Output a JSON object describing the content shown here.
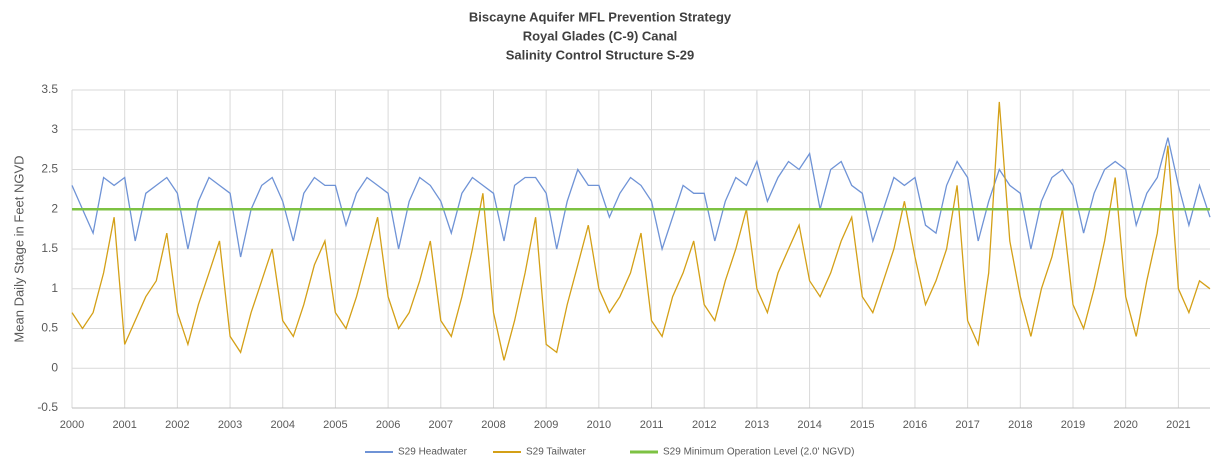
{
  "chart_data": {
    "type": "line",
    "title": "Biscayne Aquifer MFL Prevention Strategy",
    "subtitle": [
      "Royal Glades (C-9) Canal",
      "Salinity Control Structure S-29"
    ],
    "y_label": "Mean Daily Stage in Feet NGVD",
    "x": [
      2000.0,
      2000.2,
      2000.4,
      2000.6,
      2000.8,
      2001.0,
      2001.2,
      2001.4,
      2001.6,
      2001.8,
      2002.0,
      2002.2,
      2002.4,
      2002.6,
      2002.8,
      2003.0,
      2003.2,
      2003.4,
      2003.6,
      2003.8,
      2004.0,
      2004.2,
      2004.4,
      2004.6,
      2004.8,
      2005.0,
      2005.2,
      2005.4,
      2005.6,
      2005.8,
      2006.0,
      2006.2,
      2006.4,
      2006.6,
      2006.8,
      2007.0,
      2007.2,
      2007.4,
      2007.6,
      2007.8,
      2008.0,
      2008.2,
      2008.4,
      2008.6,
      2008.8,
      2009.0,
      2009.2,
      2009.4,
      2009.6,
      2009.8,
      2010.0,
      2010.2,
      2010.4,
      2010.6,
      2010.8,
      2011.0,
      2011.2,
      2011.4,
      2011.6,
      2011.8,
      2012.0,
      2012.2,
      2012.4,
      2012.6,
      2012.8,
      2013.0,
      2013.2,
      2013.4,
      2013.6,
      2013.8,
      2014.0,
      2014.2,
      2014.4,
      2014.6,
      2014.8,
      2015.0,
      2015.2,
      2015.4,
      2015.6,
      2015.8,
      2016.0,
      2016.2,
      2016.4,
      2016.6,
      2016.8,
      2017.0,
      2017.2,
      2017.4,
      2017.6,
      2017.8,
      2018.0,
      2018.2,
      2018.4,
      2018.6,
      2018.8,
      2019.0,
      2019.2,
      2019.4,
      2019.6,
      2019.8,
      2020.0,
      2020.2,
      2020.4,
      2020.6,
      2020.8,
      2021.0,
      2021.2,
      2021.4,
      2021.6
    ],
    "series": [
      {
        "name": "S29 Headwater",
        "color": "#6f93d6",
        "values": [
          2.3,
          2.0,
          1.7,
          2.4,
          2.3,
          2.4,
          1.6,
          2.2,
          2.3,
          2.4,
          2.2,
          1.5,
          2.1,
          2.4,
          2.3,
          2.2,
          1.4,
          2.0,
          2.3,
          2.4,
          2.1,
          1.6,
          2.2,
          2.4,
          2.3,
          2.3,
          1.8,
          2.2,
          2.4,
          2.3,
          2.2,
          1.5,
          2.1,
          2.4,
          2.3,
          2.1,
          1.7,
          2.2,
          2.4,
          2.3,
          2.2,
          1.6,
          2.3,
          2.4,
          2.4,
          2.2,
          1.5,
          2.1,
          2.5,
          2.3,
          2.3,
          1.9,
          2.2,
          2.4,
          2.3,
          2.1,
          1.5,
          1.9,
          2.3,
          2.2,
          2.2,
          1.6,
          2.1,
          2.4,
          2.3,
          2.6,
          2.1,
          2.4,
          2.6,
          2.5,
          2.7,
          2.0,
          2.5,
          2.6,
          2.3,
          2.2,
          1.6,
          2.0,
          2.4,
          2.3,
          2.4,
          1.8,
          1.7,
          2.3,
          2.6,
          2.4,
          1.6,
          2.1,
          2.5,
          2.3,
          2.2,
          1.5,
          2.1,
          2.4,
          2.5,
          2.3,
          1.7,
          2.2,
          2.5,
          2.6,
          2.5,
          1.8,
          2.2,
          2.4,
          2.9,
          2.3,
          1.8,
          2.3,
          1.9
        ]
      },
      {
        "name": "S29 Tailwater",
        "color": "#d4a017",
        "values": [
          0.7,
          0.5,
          0.7,
          1.2,
          1.9,
          0.3,
          0.6,
          0.9,
          1.1,
          1.7,
          0.7,
          0.3,
          0.8,
          1.2,
          1.6,
          0.4,
          0.2,
          0.7,
          1.1,
          1.5,
          0.6,
          0.4,
          0.8,
          1.3,
          1.6,
          0.7,
          0.5,
          0.9,
          1.4,
          1.9,
          0.9,
          0.5,
          0.7,
          1.1,
          1.6,
          0.6,
          0.4,
          0.9,
          1.5,
          2.2,
          0.7,
          0.1,
          0.6,
          1.2,
          1.9,
          0.3,
          0.2,
          0.8,
          1.3,
          1.8,
          1.0,
          0.7,
          0.9,
          1.2,
          1.7,
          0.6,
          0.4,
          0.9,
          1.2,
          1.6,
          0.8,
          0.6,
          1.1,
          1.5,
          2.0,
          1.0,
          0.7,
          1.2,
          1.5,
          1.8,
          1.1,
          0.9,
          1.2,
          1.6,
          1.9,
          0.9,
          0.7,
          1.1,
          1.5,
          2.1,
          1.4,
          0.8,
          1.1,
          1.5,
          2.3,
          0.6,
          0.3,
          1.2,
          3.35,
          1.6,
          0.9,
          0.4,
          1.0,
          1.4,
          2.0,
          0.8,
          0.5,
          1.0,
          1.6,
          2.4,
          0.9,
          0.4,
          1.1,
          1.7,
          2.8,
          1.0,
          0.7,
          1.1,
          1.0
        ]
      },
      {
        "name": "S29 Minimum Operation Level (2.0' NGVD)",
        "color": "#7dc243",
        "x": [
          2000.0,
          2021.6
        ],
        "values": [
          2,
          2
        ]
      }
    ],
    "xlim": [
      2000,
      2021.6
    ],
    "xticks": [
      2000,
      2001,
      2002,
      2003,
      2004,
      2005,
      2006,
      2007,
      2008,
      2009,
      2010,
      2011,
      2012,
      2013,
      2014,
      2015,
      2016,
      2017,
      2018,
      2019,
      2020,
      2021
    ],
    "ylim": [
      -0.5,
      3.5
    ],
    "yticks": [
      -0.5,
      0,
      0.5,
      1,
      1.5,
      2,
      2.5,
      3,
      3.5
    ],
    "grid": true,
    "legend": "bottom"
  }
}
